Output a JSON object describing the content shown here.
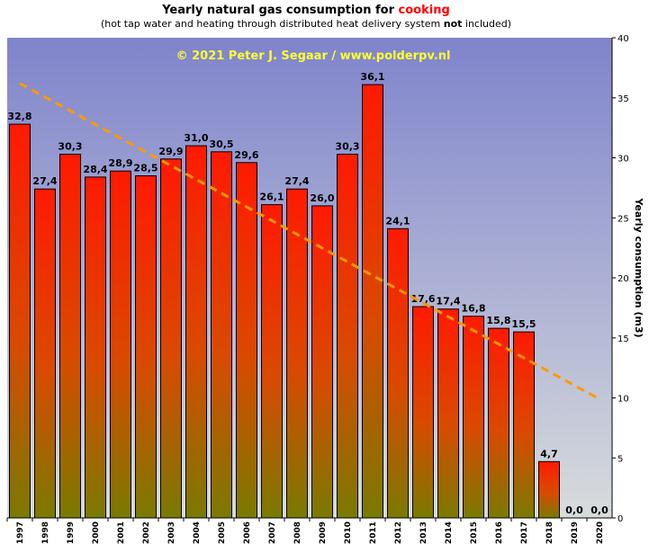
{
  "title_prefix": "Yearly natural gas consumption for",
  "title_highlight": "cooking",
  "subtitle_prefix": "(hot tap water and heating through distributed heat delivery system",
  "subtitle_bold": "not",
  "subtitle_suffix": "included)",
  "copyright": "© 2021 Peter J. Segaar / www.polderpv.nl",
  "colors": {
    "bar_top": "#ff1a00",
    "bar_bottom": "#7a7a00",
    "bg_top": "#7f84cc",
    "bg_bottom": "#d8dcdc",
    "trend": "#ff9900",
    "copyright": "#ffff33"
  },
  "chart_data": {
    "type": "bar",
    "title": "Yearly natural gas consumption for cooking",
    "subtitle": "(hot tap water and heating through distributed heat delivery system not included)",
    "xlabel": "",
    "ylabel": "Yearly consumption (m3)",
    "y_axis_position": "right",
    "ylim": [
      0,
      40
    ],
    "yticks": [
      0,
      5,
      10,
      15,
      20,
      25,
      30,
      35,
      40
    ],
    "categories": [
      "1997",
      "1998",
      "1999",
      "2000",
      "2001",
      "2002",
      "2003",
      "2004",
      "2005",
      "2006",
      "2007",
      "2008",
      "2009",
      "2010",
      "2011",
      "2012",
      "2013",
      "2014",
      "2015",
      "2016",
      "2017",
      "2018",
      "2019",
      "2020"
    ],
    "values": [
      32.8,
      27.4,
      30.3,
      28.4,
      28.9,
      28.5,
      29.9,
      31.0,
      30.5,
      29.6,
      26.1,
      27.4,
      26.0,
      30.3,
      36.1,
      24.1,
      17.6,
      17.4,
      16.8,
      15.8,
      15.5,
      4.7,
      0.0,
      0.0
    ],
    "value_labels": [
      "32,8",
      "27,4",
      "30,3",
      "28,4",
      "28,9",
      "28,5",
      "29,9",
      "31,0",
      "30,5",
      "29,6",
      "26,1",
      "27,4",
      "26,0",
      "30,3",
      "36,1",
      "24,1",
      "17,6",
      "17,4",
      "16,8",
      "15,8",
      "15,5",
      "4,7",
      "0,0",
      "0,0"
    ],
    "trendline": {
      "type": "linear",
      "from": {
        "x": "1997",
        "y": 36.2
      },
      "to": {
        "x": "2020",
        "y": 9.9
      },
      "style": "dashed"
    },
    "grid": false,
    "legend": "none"
  }
}
